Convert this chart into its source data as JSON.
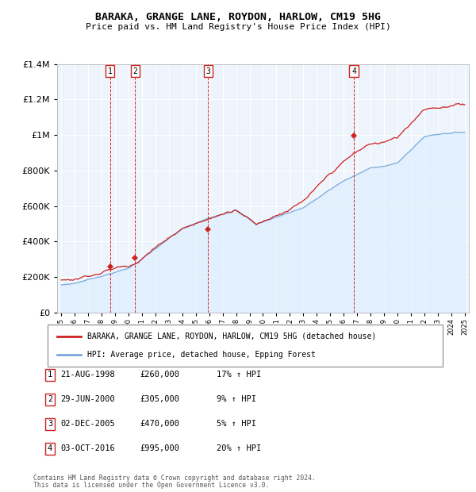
{
  "title": "BARAKA, GRANGE LANE, ROYDON, HARLOW, CM19 5HG",
  "subtitle": "Price paid vs. HM Land Registry's House Price Index (HPI)",
  "legend_line1": "BARAKA, GRANGE LANE, ROYDON, HARLOW, CM19 5HG (detached house)",
  "legend_line2": "HPI: Average price, detached house, Epping Forest",
  "footer1": "Contains HM Land Registry data © Crown copyright and database right 2024.",
  "footer2": "This data is licensed under the Open Government Licence v3.0.",
  "transactions": [
    {
      "num": 1,
      "date": "21-AUG-1998",
      "price": 260000,
      "pct": "17%",
      "year": 1998.64
    },
    {
      "num": 2,
      "date": "29-JUN-2000",
      "price": 305000,
      "pct": "9%",
      "year": 2000.49
    },
    {
      "num": 3,
      "date": "02-DEC-2005",
      "price": 470000,
      "pct": "5%",
      "year": 2005.92
    },
    {
      "num": 4,
      "date": "03-OCT-2016",
      "price": 995000,
      "pct": "20%",
      "year": 2016.75
    }
  ],
  "hpi_color": "#7aaadd",
  "price_color": "#cc2222",
  "vline_color": "#dd0000",
  "bg_shade_color": "#ddeeff",
  "ylim": [
    0,
    1400000
  ],
  "yticks": [
    0,
    200000,
    400000,
    600000,
    800000,
    1000000,
    1200000,
    1400000
  ],
  "xlim_start": 1994.7,
  "xlim_end": 2025.3
}
